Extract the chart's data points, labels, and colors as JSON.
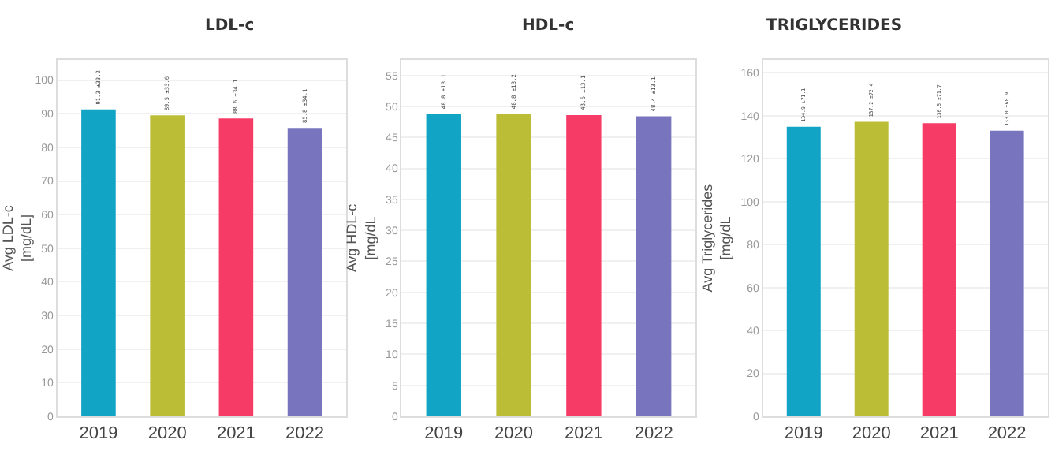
{
  "chart_data": [
    {
      "type": "bar",
      "title": "LDL-c",
      "ylabel": "Avg LDL-c [mg/dL]",
      "categories": [
        "2019",
        "2020",
        "2021",
        "2022"
      ],
      "values": [
        91.3,
        89.5,
        88.6,
        85.8
      ],
      "colors": [
        "#12a4c4",
        "#bcbd37",
        "#f63c66",
        "#7874be"
      ],
      "value_labels": [
        "91.3 ±33.2",
        "89.5 ±33.6",
        "88.6 ±34.1",
        "85.8 ±34.1"
      ],
      "ylim": [
        0,
        106
      ],
      "yticks": [
        0,
        10,
        20,
        30,
        40,
        50,
        60,
        70,
        80,
        90,
        100
      ],
      "grid": "y"
    },
    {
      "type": "bar",
      "title": "HDL-c",
      "ylabel": "Avg HDL-c [mg/dL",
      "categories": [
        "2019",
        "2020",
        "2021",
        "2022"
      ],
      "values": [
        48.8,
        48.8,
        48.6,
        48.4
      ],
      "colors": [
        "#12a4c4",
        "#bcbd37",
        "#f63c66",
        "#7874be"
      ],
      "value_labels": [
        "48.8 ±13.1",
        "48.8 ±13.2",
        "48.6 ±13.1",
        "48.4 ±13.1"
      ],
      "ylim": [
        0,
        57.5
      ],
      "yticks": [
        0,
        5,
        10,
        15,
        20,
        25,
        30,
        35,
        40,
        45,
        50,
        55
      ],
      "grid": "y"
    },
    {
      "type": "bar",
      "title": "TRIGLYCERIDES",
      "ylabel": "Avg Triglycerides [mg/dL",
      "categories": [
        "2019",
        "2020",
        "2021",
        "2022"
      ],
      "values": [
        134.9,
        137.2,
        136.5,
        133.0
      ],
      "colors": [
        "#12a4c4",
        "#bcbd37",
        "#f63c66",
        "#7874be"
      ],
      "value_labels": [
        "134.9 ±71.1",
        "137.2 ±72.4",
        "136.5 ±71.7",
        "133.0 ±68.9"
      ],
      "ylim": [
        0,
        166
      ],
      "yticks": [
        0,
        20,
        40,
        60,
        80,
        100,
        120,
        140,
        160
      ],
      "grid": "y"
    }
  ]
}
